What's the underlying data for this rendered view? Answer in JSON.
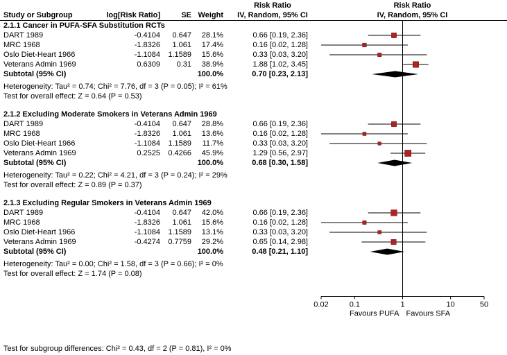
{
  "header": {
    "risk_ratio_text_col": "Risk Ratio",
    "risk_ratio_plot_col": "Risk Ratio",
    "study": "Study or Subgroup",
    "log_rr": "log[Risk Ratio]",
    "se": "SE",
    "weight": "Weight",
    "method_text_col": "IV, Random, 95% CI",
    "method_plot_col": "IV, Random, 95% CI"
  },
  "footer": {
    "subgroup_diff": "Test for subgroup differences: Chi² = 0.43, df = 2 (P = 0.81), I² = 0%"
  },
  "chart_data": {
    "type": "forest",
    "x_scale": "log",
    "axis_range": [
      0.02,
      50
    ],
    "axis_ticks": [
      "0.02",
      "0.1",
      "1",
      "10",
      "50"
    ],
    "favours_left": "Favours PUFA",
    "favours_right": "Favours SFA",
    "marker_color": "#b22222",
    "diamond_color": "#000000",
    "axis_color": "#000000",
    "subgroups": [
      {
        "title": "2.1.1 Cancer in PUFA-SFA Substitution RCTs",
        "studies": [
          {
            "name": "DART 1989",
            "log_rr": "-0.4104",
            "se": "0.647",
            "weight": "28.1%",
            "ci_text": "0.66 [0.19, 2.36]",
            "rr": 0.66,
            "ci_low": 0.19,
            "ci_high": 2.36,
            "weight_pct": 28.1
          },
          {
            "name": "MRC 1968",
            "log_rr": "-1.8326",
            "se": "1.061",
            "weight": "17.4%",
            "ci_text": "0.16 [0.02, 1.28]",
            "rr": 0.16,
            "ci_low": 0.02,
            "ci_high": 1.28,
            "weight_pct": 17.4
          },
          {
            "name": "Oslo Diet-Heart 1966",
            "log_rr": "-1.1084",
            "se": "1.1589",
            "weight": "15.6%",
            "ci_text": "0.33 [0.03, 3.20]",
            "rr": 0.33,
            "ci_low": 0.03,
            "ci_high": 3.2,
            "weight_pct": 15.6
          },
          {
            "name": "Veterans Admin 1969",
            "log_rr": "0.6309",
            "se": "0.31",
            "weight": "38.9%",
            "ci_text": "1.88 [1.02, 3.45]",
            "rr": 1.88,
            "ci_low": 1.02,
            "ci_high": 3.45,
            "weight_pct": 38.9
          }
        ],
        "subtotal": {
          "label": "Subtotal (95% CI)",
          "weight": "100.0%",
          "ci_text": "0.70 [0.23, 2.13]",
          "rr": 0.7,
          "ci_low": 0.23,
          "ci_high": 2.13
        },
        "heterogeneity": "Heterogeneity: Tau² = 0.74; Chi² = 7.76, df = 3 (P = 0.05); I² = 61%",
        "overall": "Test for overall effect: Z = 0.64 (P = 0.53)"
      },
      {
        "title": "2.1.2 Excluding Moderate Smokers in Veterans Admin 1969",
        "studies": [
          {
            "name": "DART 1989",
            "log_rr": "-0.4104",
            "se": "0.647",
            "weight": "28.8%",
            "ci_text": "0.66 [0.19, 2.36]",
            "rr": 0.66,
            "ci_low": 0.19,
            "ci_high": 2.36,
            "weight_pct": 28.8
          },
          {
            "name": "MRC 1968",
            "log_rr": "-1.8326",
            "se": "1.061",
            "weight": "13.6%",
            "ci_text": "0.16 [0.02, 1.28]",
            "rr": 0.16,
            "ci_low": 0.02,
            "ci_high": 1.28,
            "weight_pct": 13.6
          },
          {
            "name": "Oslo Diet-Heart 1966",
            "log_rr": "-1.1084",
            "se": "1.1589",
            "weight": "11.7%",
            "ci_text": "0.33 [0.03, 3.20]",
            "rr": 0.33,
            "ci_low": 0.03,
            "ci_high": 3.2,
            "weight_pct": 11.7
          },
          {
            "name": "Veterans Admin 1969",
            "log_rr": "0.2525",
            "se": "0.4266",
            "weight": "45.9%",
            "ci_text": "1.29 [0.56, 2.97]",
            "rr": 1.29,
            "ci_low": 0.56,
            "ci_high": 2.97,
            "weight_pct": 45.9
          }
        ],
        "subtotal": {
          "label": "Subtotal (95% CI)",
          "weight": "100.0%",
          "ci_text": "0.68 [0.30, 1.58]",
          "rr": 0.68,
          "ci_low": 0.3,
          "ci_high": 1.58
        },
        "heterogeneity": "Heterogeneity: Tau² = 0.22; Chi² = 4.21, df = 3 (P = 0.24); I² = 29%",
        "overall": "Test for overall effect: Z = 0.89 (P = 0.37)"
      },
      {
        "title": "2.1.3 Excluding Regular Smokers in Veterans Admin 1969",
        "studies": [
          {
            "name": "DART 1989",
            "log_rr": "-0.4104",
            "se": "0.647",
            "weight": "42.0%",
            "ci_text": "0.66 [0.19, 2.36]",
            "rr": 0.66,
            "ci_low": 0.19,
            "ci_high": 2.36,
            "weight_pct": 42.0
          },
          {
            "name": "MRC 1968",
            "log_rr": "-1.8326",
            "se": "1.061",
            "weight": "15.6%",
            "ci_text": "0.16 [0.02, 1.28]",
            "rr": 0.16,
            "ci_low": 0.02,
            "ci_high": 1.28,
            "weight_pct": 15.6
          },
          {
            "name": "Oslo Diet-Heart 1966",
            "log_rr": "-1.1084",
            "se": "1.1589",
            "weight": "13.1%",
            "ci_text": "0.33 [0.03, 3.20]",
            "rr": 0.33,
            "ci_low": 0.03,
            "ci_high": 3.2,
            "weight_pct": 13.1
          },
          {
            "name": "Veterans Admin 1969",
            "log_rr": "-0.4274",
            "se": "0.7759",
            "weight": "29.2%",
            "ci_text": "0.65 [0.14, 2.98]",
            "rr": 0.65,
            "ci_low": 0.14,
            "ci_high": 2.98,
            "weight_pct": 29.2
          }
        ],
        "subtotal": {
          "label": "Subtotal (95% CI)",
          "weight": "100.0%",
          "ci_text": "0.48 [0.21, 1.10]",
          "rr": 0.48,
          "ci_low": 0.21,
          "ci_high": 1.1
        },
        "heterogeneity": "Heterogeneity: Tau² = 0.00; Chi² = 1.58, df = 3 (P = 0.66); I² = 0%",
        "overall": "Test for overall effect: Z = 1.74 (P = 0.08)"
      }
    ]
  }
}
